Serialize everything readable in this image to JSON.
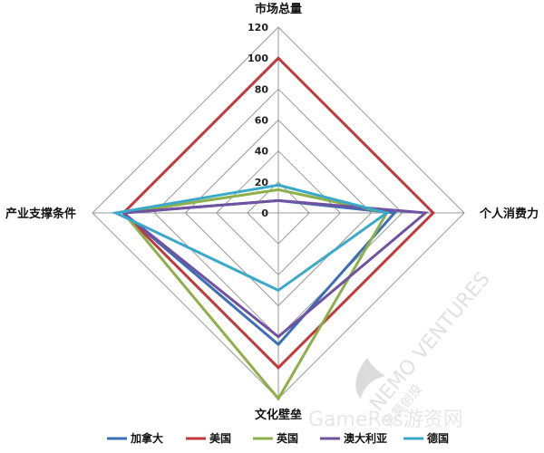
{
  "chart_data": {
    "type": "radar",
    "axes": [
      "市场总量",
      "个人消费力",
      "文化壁垒",
      "产业支撑条件"
    ],
    "rlim": [
      0,
      120
    ],
    "ticks": [
      0,
      20,
      40,
      60,
      80,
      100,
      120
    ],
    "grid": true,
    "legend_position": "bottom",
    "series": [
      {
        "name": "加拿大",
        "color": "#3c6eb4",
        "values": [
          8,
          75,
          85,
          100
        ]
      },
      {
        "name": "美国",
        "color": "#c0393b",
        "values": [
          100,
          100,
          100,
          100
        ]
      },
      {
        "name": "英国",
        "color": "#8db04a",
        "values": [
          15,
          70,
          120,
          100
        ]
      },
      {
        "name": "澳大利亚",
        "color": "#7152a0",
        "values": [
          8,
          95,
          80,
          100
        ]
      },
      {
        "name": "德国",
        "color": "#3aa9c8",
        "values": [
          18,
          70,
          50,
          105
        ]
      }
    ]
  },
  "watermark": {
    "line1": "NEMO VENTURES",
    "line2": "尼莫创投",
    "line3": "GameRes游资网"
  }
}
